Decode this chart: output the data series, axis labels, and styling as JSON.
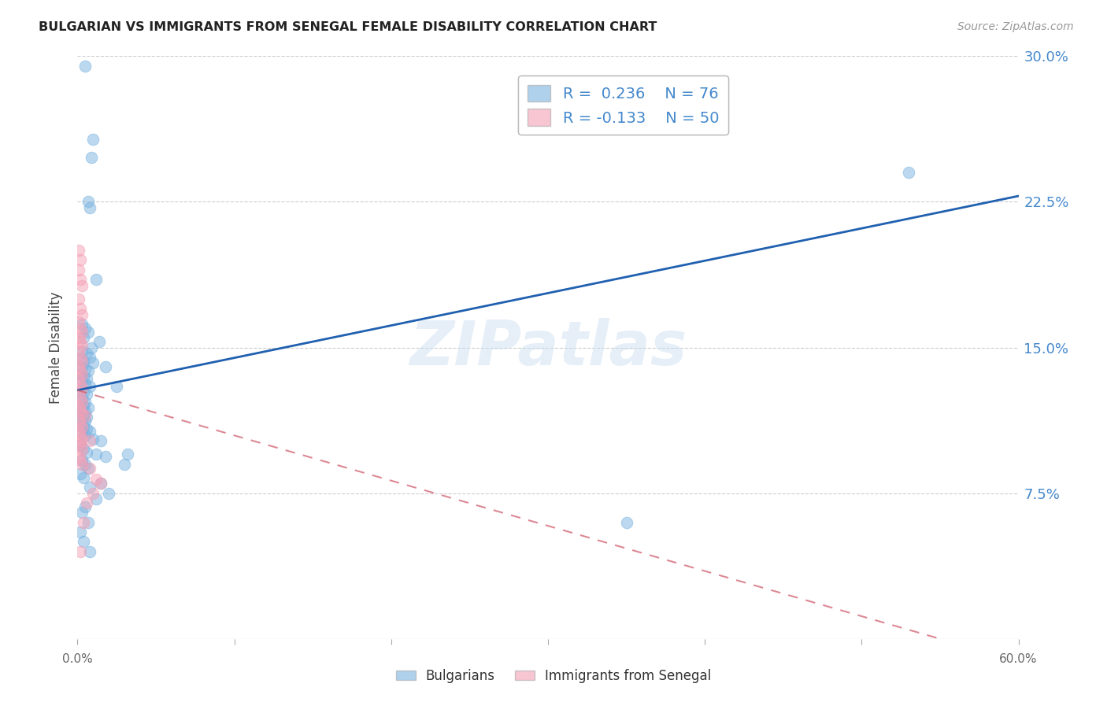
{
  "title": "BULGARIAN VS IMMIGRANTS FROM SENEGAL FEMALE DISABILITY CORRELATION CHART",
  "source": "Source: ZipAtlas.com",
  "xlabel": "",
  "ylabel": "Female Disability",
  "watermark": "ZIPatlas",
  "xlim": [
    0.0,
    0.6
  ],
  "ylim": [
    0.0,
    0.3
  ],
  "xticks": [
    0.0,
    0.1,
    0.2,
    0.3,
    0.4,
    0.5,
    0.6
  ],
  "xticklabels": [
    "0.0%",
    "",
    "",
    "",
    "",
    "",
    "60.0%"
  ],
  "yticks": [
    0.0,
    0.075,
    0.15,
    0.225,
    0.3
  ],
  "yticklabels": [
    "",
    "7.5%",
    "15.0%",
    "22.5%",
    "30.0%"
  ],
  "legend_R1": "R =  0.236",
  "legend_N1": "N = 76",
  "legend_R2": "R = -0.133",
  "legend_N2": "N = 50",
  "blue_color": "#7ab3e0",
  "pink_color": "#f4a0b5",
  "trend_blue": "#2060b0",
  "trend_pink": "#d06070",
  "blue_line_x": [
    0.0,
    0.6
  ],
  "blue_line_y": [
    0.128,
    0.228
  ],
  "pink_line_x": [
    0.0,
    0.55
  ],
  "pink_line_y": [
    0.128,
    0.0
  ],
  "blue_data": [
    [
      0.005,
      0.295
    ],
    [
      0.01,
      0.257
    ],
    [
      0.009,
      0.248
    ],
    [
      0.007,
      0.225
    ],
    [
      0.008,
      0.222
    ],
    [
      0.012,
      0.185
    ],
    [
      0.003,
      0.162
    ],
    [
      0.005,
      0.16
    ],
    [
      0.007,
      0.158
    ],
    [
      0.004,
      0.155
    ],
    [
      0.014,
      0.153
    ],
    [
      0.009,
      0.15
    ],
    [
      0.003,
      0.148
    ],
    [
      0.006,
      0.147
    ],
    [
      0.008,
      0.145
    ],
    [
      0.002,
      0.144
    ],
    [
      0.004,
      0.143
    ],
    [
      0.01,
      0.142
    ],
    [
      0.003,
      0.14
    ],
    [
      0.005,
      0.139
    ],
    [
      0.007,
      0.138
    ],
    [
      0.002,
      0.136
    ],
    [
      0.004,
      0.135
    ],
    [
      0.006,
      0.134
    ],
    [
      0.003,
      0.133
    ],
    [
      0.005,
      0.131
    ],
    [
      0.008,
      0.13
    ],
    [
      0.002,
      0.128
    ],
    [
      0.004,
      0.127
    ],
    [
      0.006,
      0.126
    ],
    [
      0.003,
      0.124
    ],
    [
      0.002,
      0.123
    ],
    [
      0.005,
      0.122
    ],
    [
      0.004,
      0.12
    ],
    [
      0.007,
      0.119
    ],
    [
      0.003,
      0.118
    ],
    [
      0.005,
      0.117
    ],
    [
      0.002,
      0.116
    ],
    [
      0.004,
      0.115
    ],
    [
      0.006,
      0.114
    ],
    [
      0.003,
      0.113
    ],
    [
      0.005,
      0.112
    ],
    [
      0.002,
      0.11
    ],
    [
      0.004,
      0.109
    ],
    [
      0.006,
      0.108
    ],
    [
      0.008,
      0.107
    ],
    [
      0.003,
      0.106
    ],
    [
      0.005,
      0.105
    ],
    [
      0.01,
      0.103
    ],
    [
      0.015,
      0.102
    ],
    [
      0.002,
      0.1
    ],
    [
      0.004,
      0.098
    ],
    [
      0.006,
      0.096
    ],
    [
      0.012,
      0.095
    ],
    [
      0.018,
      0.094
    ],
    [
      0.003,
      0.092
    ],
    [
      0.005,
      0.09
    ],
    [
      0.007,
      0.088
    ],
    [
      0.002,
      0.085
    ],
    [
      0.004,
      0.083
    ],
    [
      0.015,
      0.08
    ],
    [
      0.008,
      0.078
    ],
    [
      0.02,
      0.075
    ],
    [
      0.012,
      0.072
    ],
    [
      0.005,
      0.068
    ],
    [
      0.003,
      0.065
    ],
    [
      0.007,
      0.06
    ],
    [
      0.002,
      0.055
    ],
    [
      0.004,
      0.05
    ],
    [
      0.008,
      0.045
    ],
    [
      0.018,
      0.14
    ],
    [
      0.025,
      0.13
    ],
    [
      0.032,
      0.095
    ],
    [
      0.03,
      0.09
    ],
    [
      0.53,
      0.24
    ],
    [
      0.35,
      0.06
    ]
  ],
  "pink_data": [
    [
      0.001,
      0.2
    ],
    [
      0.002,
      0.195
    ],
    [
      0.001,
      0.19
    ],
    [
      0.002,
      0.185
    ],
    [
      0.003,
      0.182
    ],
    [
      0.001,
      0.175
    ],
    [
      0.002,
      0.17
    ],
    [
      0.003,
      0.167
    ],
    [
      0.001,
      0.163
    ],
    [
      0.002,
      0.16
    ],
    [
      0.003,
      0.158
    ],
    [
      0.001,
      0.155
    ],
    [
      0.002,
      0.153
    ],
    [
      0.003,
      0.151
    ],
    [
      0.001,
      0.148
    ],
    [
      0.002,
      0.145
    ],
    [
      0.003,
      0.143
    ],
    [
      0.001,
      0.14
    ],
    [
      0.002,
      0.138
    ],
    [
      0.003,
      0.136
    ],
    [
      0.001,
      0.134
    ],
    [
      0.002,
      0.131
    ],
    [
      0.003,
      0.129
    ],
    [
      0.001,
      0.127
    ],
    [
      0.002,
      0.124
    ],
    [
      0.003,
      0.122
    ],
    [
      0.001,
      0.12
    ],
    [
      0.002,
      0.118
    ],
    [
      0.003,
      0.116
    ],
    [
      0.001,
      0.113
    ],
    [
      0.002,
      0.111
    ],
    [
      0.003,
      0.109
    ],
    [
      0.001,
      0.107
    ],
    [
      0.002,
      0.105
    ],
    [
      0.003,
      0.103
    ],
    [
      0.001,
      0.101
    ],
    [
      0.002,
      0.099
    ],
    [
      0.003,
      0.097
    ],
    [
      0.001,
      0.094
    ],
    [
      0.002,
      0.092
    ],
    [
      0.003,
      0.09
    ],
    [
      0.008,
      0.088
    ],
    [
      0.012,
      0.082
    ],
    [
      0.015,
      0.08
    ],
    [
      0.01,
      0.075
    ],
    [
      0.006,
      0.07
    ],
    [
      0.004,
      0.06
    ],
    [
      0.002,
      0.045
    ],
    [
      0.008,
      0.102
    ],
    [
      0.005,
      0.115
    ]
  ],
  "bg_color": "#ffffff",
  "grid_color": "#cccccc",
  "ytick_color": "#4488cc",
  "xtick_color": "#666666"
}
